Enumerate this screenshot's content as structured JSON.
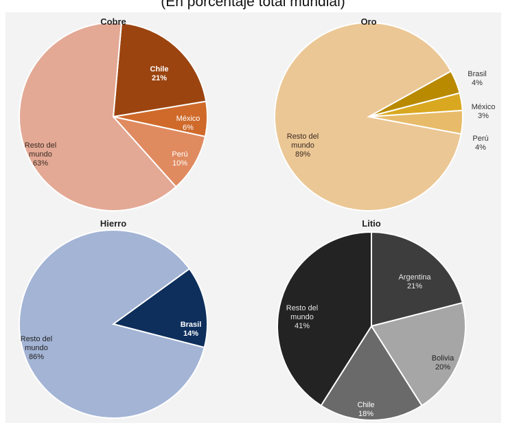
{
  "title": "(En porcentaje total mundial)",
  "chart_data": [
    {
      "type": "pie",
      "title": "Cobre",
      "slices": [
        {
          "label": "Chile",
          "value": 21,
          "display": "21%",
          "color": "#9b4410",
          "text_color": "#ffffff",
          "bold": true
        },
        {
          "label": "México",
          "value": 6,
          "display": "6%",
          "color": "#cf6a2a",
          "text_color": "#ffffff",
          "bold": false
        },
        {
          "label": "Perú",
          "value": 10,
          "display": "10%",
          "color": "#e08a60",
          "text_color": "#ffffff",
          "bold": false
        },
        {
          "label": "Resto del mundo",
          "value": 63,
          "display": "63%",
          "color": "#e3a995",
          "text_color": "#3a2a22",
          "bold": false
        }
      ]
    },
    {
      "type": "pie",
      "title": "Oro",
      "slices": [
        {
          "label": "Brasil",
          "value": 4,
          "display": "4%",
          "color": "#b98a00",
          "text_color": "#333333",
          "bold": false
        },
        {
          "label": "México",
          "value": 3,
          "display": "3%",
          "color": "#d9a820",
          "text_color": "#333333",
          "bold": false
        },
        {
          "label": "Perú",
          "value": 4,
          "display": "4%",
          "color": "#e7bb6a",
          "text_color": "#333333",
          "bold": false
        },
        {
          "label": "Resto del mundo",
          "value": 89,
          "display": "89%",
          "color": "#ebc795",
          "text_color": "#3a2a22",
          "bold": false
        }
      ]
    },
    {
      "type": "pie",
      "title": "Hierro",
      "slices": [
        {
          "label": "Brasil",
          "value": 14,
          "display": "14%",
          "color": "#0e2f5c",
          "text_color": "#ffffff",
          "bold": true
        },
        {
          "label": "Resto del mundo",
          "value": 86,
          "display": "86%",
          "color": "#a3b4d5",
          "text_color": "#222222",
          "bold": false
        }
      ]
    },
    {
      "type": "pie",
      "title": "Litio",
      "slices": [
        {
          "label": "Argentina",
          "value": 21,
          "display": "21%",
          "color": "#3d3d3d",
          "text_color": "#e6e6e6",
          "bold": false
        },
        {
          "label": "Bolivia",
          "value": 20,
          "display": "20%",
          "color": "#a6a6a6",
          "text_color": "#222222",
          "bold": false
        },
        {
          "label": "Chile",
          "value": 18,
          "display": "18%",
          "color": "#6a6a6a",
          "text_color": "#ffffff",
          "bold": false
        },
        {
          "label": "Resto del mundo",
          "value": 41,
          "display": "41%",
          "color": "#232323",
          "text_color": "#e6e6e6",
          "bold": false
        }
      ]
    }
  ]
}
